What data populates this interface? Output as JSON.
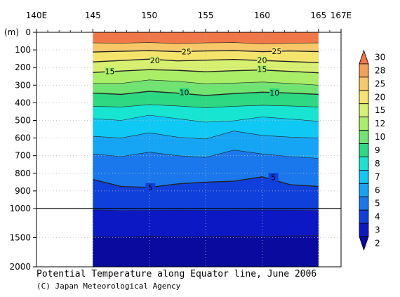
{
  "chart_data": {
    "type": "heatmap",
    "title": "Potential Temperature along Equator line, June 2006",
    "credit": "(C) Japan Meteorological Agency",
    "ylabel": "(m)",
    "x_ticks": [
      "140E",
      "145",
      "150",
      "155",
      "160",
      "165",
      "167E"
    ],
    "x_tick_values": [
      140,
      145,
      150,
      155,
      160,
      165,
      167
    ],
    "xlim": [
      140,
      167
    ],
    "data_xrange": [
      145,
      165
    ],
    "y_ticks_upper": [
      "0",
      "100",
      "200",
      "300",
      "400",
      "500",
      "600",
      "700",
      "800",
      "900",
      "1000"
    ],
    "y_tick_values_upper": [
      0,
      100,
      200,
      300,
      400,
      500,
      600,
      700,
      800,
      900,
      1000
    ],
    "y_ticks_lower": [
      "1500",
      "2000"
    ],
    "y_tick_values_lower": [
      1500,
      2000
    ],
    "ylim": [
      0,
      2000
    ],
    "colorbar_labels": [
      "30",
      "28",
      "25",
      "20",
      "15",
      "12",
      "10",
      "9",
      "8",
      "7",
      "6",
      "5",
      "4",
      "3",
      "2"
    ],
    "colorbar_levels": [
      30,
      28,
      25,
      20,
      15,
      12,
      10,
      9,
      8,
      7,
      6,
      5,
      4,
      3,
      2
    ],
    "colorbar_colors": [
      "#f07848",
      "#f4a056",
      "#f8c868",
      "#f4e46c",
      "#d8f070",
      "#aaee68",
      "#70e470",
      "#2cd882",
      "#18e4d2",
      "#10c8f4",
      "#16a4f4",
      "#1a78ec",
      "#1040dc",
      "#0c18c4",
      "#0a0a9e"
    ],
    "isotherms": [
      {
        "value": 28,
        "depth": [
          60,
          62,
          58,
          64,
          60,
          58,
          66,
          62,
          60
        ]
      },
      {
        "value": 25,
        "depth": [
          112,
          108,
          104,
          110,
          106,
          104,
          110,
          106,
          110
        ]
      },
      {
        "value": 20,
        "depth": [
          168,
          160,
          152,
          162,
          158,
          154,
          160,
          166,
          172
        ]
      },
      {
        "value": 15,
        "depth": [
          228,
          220,
          212,
          216,
          224,
          218,
          214,
          222,
          230
        ]
      },
      {
        "value": 12,
        "depth": [
          290,
          290,
          270,
          278,
          292,
          288,
          282,
          290,
          300
        ]
      },
      {
        "value": 10,
        "depth": [
          345,
          352,
          335,
          345,
          358,
          348,
          340,
          345,
          352
        ]
      },
      {
        "value": 9,
        "depth": [
          420,
          424,
          410,
          418,
          428,
          420,
          414,
          418,
          424
        ]
      },
      {
        "value": 8,
        "depth": [
          490,
          500,
          470,
          490,
          510,
          502,
          480,
          492,
          505
        ]
      },
      {
        "value": 7,
        "depth": [
          590,
          600,
          570,
          595,
          605,
          560,
          585,
          595,
          600
        ]
      },
      {
        "value": 6,
        "depth": [
          690,
          705,
          680,
          700,
          710,
          668,
          690,
          705,
          715
        ]
      },
      {
        "value": 5,
        "depth": [
          835,
          875,
          880,
          860,
          850,
          845,
          820,
          865,
          875
        ]
      },
      {
        "value": 4,
        "depth": [
          1020,
          1035,
          1030,
          1028,
          1032,
          1030,
          1025,
          1028,
          1035
        ]
      },
      {
        "value": 3,
        "depth": [
          1480,
          1490,
          1470,
          1485,
          1480,
          1475,
          1480,
          1470,
          1465
        ]
      }
    ],
    "isotherm_x": [
      145,
      147.5,
      150,
      152.5,
      155,
      157.5,
      160,
      162.5,
      165
    ],
    "contour_labels": [
      {
        "text": "25",
        "x": 153.3,
        "depth": 110,
        "value": 25
      },
      {
        "text": "25",
        "x": 161.3,
        "depth": 108,
        "value": 25
      },
      {
        "text": "20",
        "x": 150.5,
        "depth": 160,
        "value": 20
      },
      {
        "text": "20",
        "x": 160.0,
        "depth": 158,
        "value": 20
      },
      {
        "text": "15",
        "x": 146.5,
        "depth": 222,
        "value": 15
      },
      {
        "text": "15",
        "x": 160.0,
        "depth": 210,
        "value": 15
      },
      {
        "text": "10",
        "x": 153.1,
        "depth": 340,
        "value": 10
      },
      {
        "text": "10",
        "x": 161.1,
        "depth": 342,
        "value": 10
      },
      {
        "text": "5",
        "x": 150.1,
        "depth": 880,
        "value": 5
      },
      {
        "text": "5",
        "x": 161.0,
        "depth": 822,
        "value": 5
      }
    ]
  }
}
